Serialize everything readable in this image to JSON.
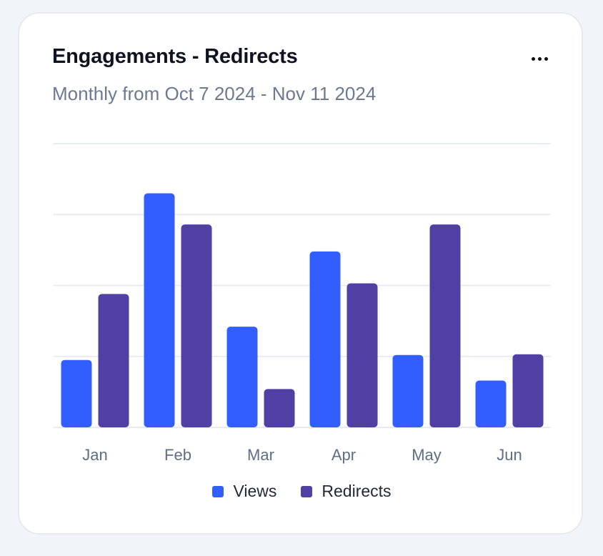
{
  "card": {
    "title": "Engagements - Redirects",
    "subtitle": "Monthly from Oct 7 2024 - Nov 11 2024",
    "menu_icon": "more-horizontal-icon"
  },
  "chart_data": {
    "type": "bar",
    "title": "Engagements - Redirects",
    "subtitle": "Monthly from Oct 7 2024 - Nov 11 2024",
    "categories": [
      "Jan",
      "Feb",
      "Mar",
      "Apr",
      "May",
      "Jun"
    ],
    "series": [
      {
        "name": "Views",
        "color": "#335eff",
        "values": [
          95,
          330,
          142,
          248,
          102,
          66
        ]
      },
      {
        "name": "Redirects",
        "color": "#523fa3",
        "values": [
          188,
          286,
          54,
          203,
          286,
          103
        ]
      }
    ],
    "ylim": [
      0,
      400
    ],
    "gridlines": [
      0,
      100,
      200,
      300,
      400
    ],
    "grid": true,
    "xlabel": "",
    "ylabel": "",
    "legend_position": "bottom-center"
  },
  "legend": {
    "items": [
      {
        "label": "Views",
        "color": "#335eff"
      },
      {
        "label": "Redirects",
        "color": "#523fa3"
      }
    ]
  }
}
